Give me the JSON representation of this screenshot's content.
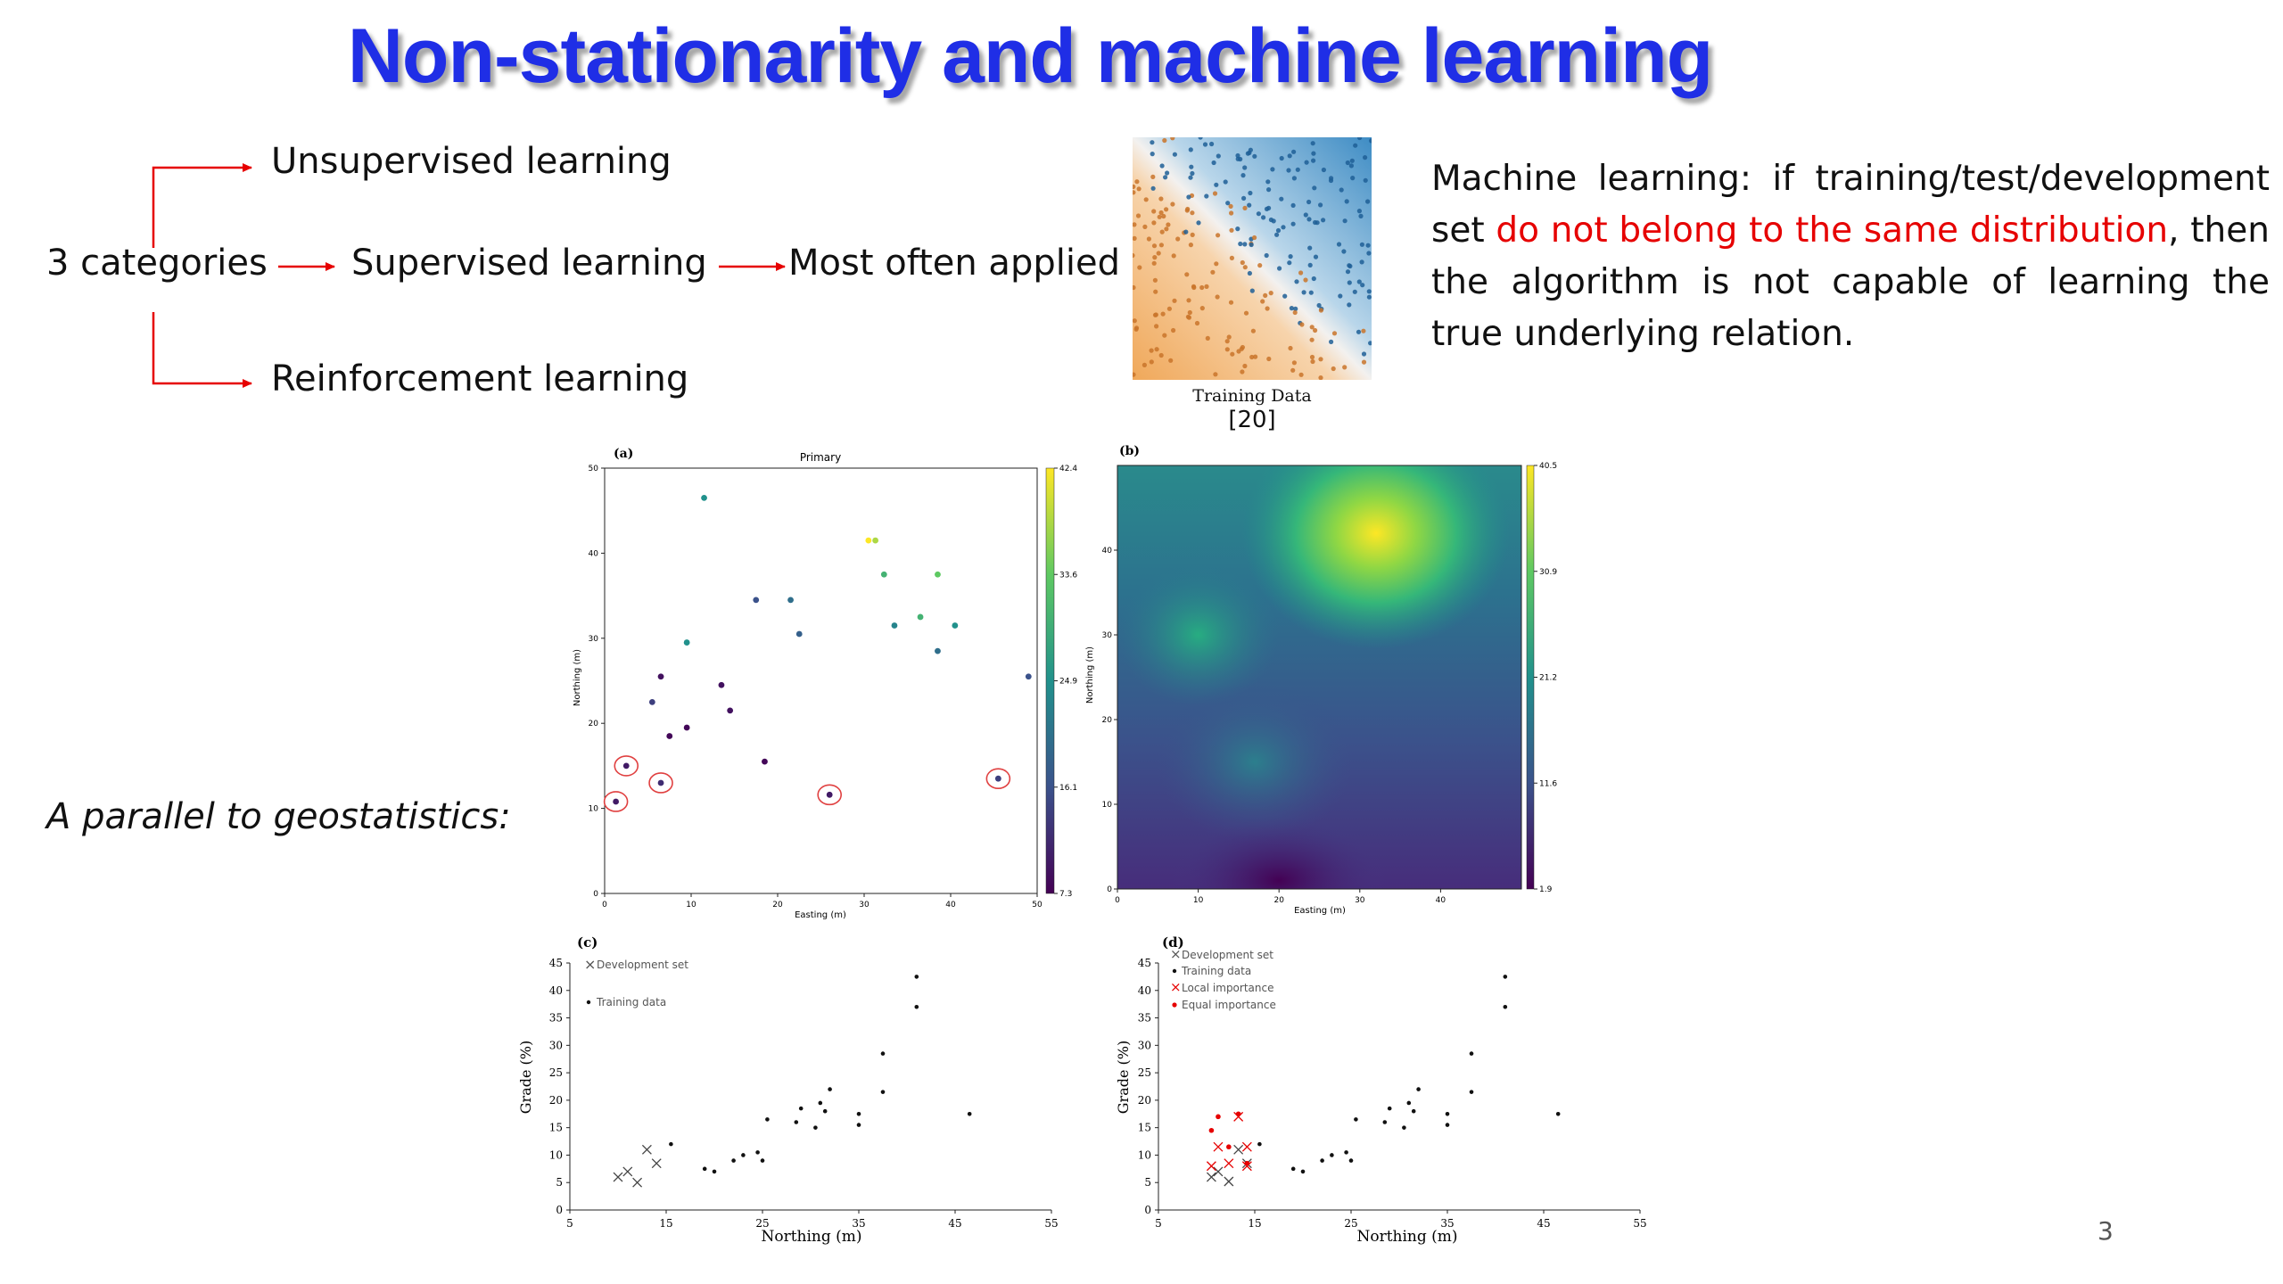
{
  "slide": {
    "title": "Non-stationarity and machine learning",
    "categories_label": "3 categories",
    "unsupervised": "Unsupervised learning",
    "supervised": "Supervised learning",
    "reinforcement": "Reinforcement learning",
    "most_often": "Most often applied",
    "paragraph": {
      "part1": "Machine learning: if training/test/development set ",
      "highlight": "do not belong to the same distribution",
      "part2": ", then the algorithm is not capable of learning the true underlying relation."
    },
    "training_caption": "Training Data",
    "reference": "[20]",
    "parallel": "A parallel to geostatistics:",
    "page_number": "3",
    "colors": {
      "title": "#1f2ee6",
      "arrow": "#e60000",
      "highlight": "#e60000"
    }
  },
  "panels": {
    "a": {
      "label": "(a)",
      "title": "Primary",
      "xlabel": "Easting (m)",
      "ylabel": "Northing (m)",
      "xticks": [
        "0",
        "10",
        "20",
        "30",
        "40",
        "50"
      ],
      "yticks": [
        "0",
        "10",
        "20",
        "30",
        "40",
        "50"
      ],
      "cbar_ticks": [
        "7.3",
        "16.1",
        "24.9",
        "33.6",
        "42.4"
      ]
    },
    "b": {
      "label": "(b)",
      "xlabel": "Easting (m)",
      "ylabel": "Northing (m)",
      "xticks": [
        "0",
        "10",
        "20",
        "30",
        "40"
      ],
      "yticks": [
        "0",
        "10",
        "20",
        "30",
        "40"
      ],
      "cbar_ticks": [
        "1.9",
        "11.6",
        "21.2",
        "30.9",
        "40.5"
      ]
    },
    "c": {
      "label": "(c)",
      "legend_dev": "Development set",
      "legend_train": "Training data"
    },
    "d": {
      "label": "(d)",
      "legend_dev": "Development set",
      "legend_train": "Training data",
      "legend_local": "Local importance",
      "legend_equal": "Equal importance"
    },
    "cd_xlabel": "Northing (m)",
    "cd_ylabel": "Grade (%)",
    "cd_xticks": [
      "5",
      "15",
      "25",
      "35",
      "45",
      "55"
    ],
    "cd_yticks": [
      "0",
      "5",
      "10",
      "15",
      "20",
      "25",
      "30",
      "35",
      "40",
      "45"
    ]
  },
  "chart_data": [
    {
      "type": "scatter",
      "name": "(a)",
      "title": "Primary",
      "xlabel": "Easting (m)",
      "ylabel": "Northing (m)",
      "xlim": [
        0,
        50
      ],
      "ylim": [
        0,
        50
      ],
      "colorbar": [
        7.3,
        42.4
      ],
      "points": [
        [
          11.5,
          46.5,
          24.9
        ],
        [
          30.5,
          41.5,
          42.4
        ],
        [
          31.3,
          41.5,
          38
        ],
        [
          32.3,
          37.5,
          30
        ],
        [
          38.5,
          37.5,
          33.6
        ],
        [
          17.5,
          34.5,
          16.1
        ],
        [
          21.5,
          34.5,
          20
        ],
        [
          33.5,
          31.5,
          23
        ],
        [
          36.5,
          32.5,
          30
        ],
        [
          40.5,
          31.5,
          24.9
        ],
        [
          9.5,
          29.5,
          24.9
        ],
        [
          22.5,
          30.5,
          18
        ],
        [
          38.5,
          28.5,
          20
        ],
        [
          6.5,
          25.5,
          9
        ],
        [
          13.5,
          24.5,
          9
        ],
        [
          49,
          25.5,
          16.1
        ],
        [
          5.5,
          22.5,
          14
        ],
        [
          14.5,
          21.5,
          9
        ],
        [
          9.5,
          19.5,
          8
        ],
        [
          7.5,
          18.5,
          8
        ],
        [
          18.5,
          15.5,
          8
        ],
        [
          2.5,
          15,
          10
        ],
        [
          6.5,
          13,
          12
        ],
        [
          45.5,
          13.5,
          14
        ],
        [
          26,
          11.6,
          10
        ],
        [
          1.3,
          10.8,
          10
        ]
      ],
      "circled": [
        [
          2.5,
          15
        ],
        [
          6.5,
          13
        ],
        [
          45.5,
          13.5
        ],
        [
          26,
          11.6
        ],
        [
          1.3,
          10.8
        ]
      ]
    },
    {
      "type": "heatmap",
      "name": "(b)",
      "xlabel": "Easting (m)",
      "ylabel": "Northing (m)",
      "xlim": [
        0,
        50
      ],
      "ylim": [
        0,
        50
      ],
      "colorbar": [
        1.9,
        40.5
      ],
      "peaks": [
        [
          32,
          42,
          40.5
        ],
        [
          10,
          30,
          22
        ],
        [
          17,
          15,
          18
        ],
        [
          20,
          1,
          2
        ]
      ]
    },
    {
      "type": "scatter",
      "name": "(c)",
      "xlabel": "Northing (m)",
      "ylabel": "Grade (%)",
      "xlim": [
        5,
        55
      ],
      "ylim": [
        0,
        45
      ],
      "series": [
        {
          "name": "Development set",
          "marker": "x",
          "points": [
            [
              10,
              6
            ],
            [
              11,
              7
            ],
            [
              12,
              5
            ],
            [
              13,
              11
            ],
            [
              14,
              8.5
            ]
          ]
        },
        {
          "name": "Training data",
          "marker": "dot",
          "points": [
            [
              15.5,
              12
            ],
            [
              19,
              7.5
            ],
            [
              20,
              7
            ],
            [
              22,
              9
            ],
            [
              23,
              10
            ],
            [
              24.5,
              10.5
            ],
            [
              25,
              9
            ],
            [
              25.5,
              16.5
            ],
            [
              28.5,
              16
            ],
            [
              29,
              18.5
            ],
            [
              30.5,
              15
            ],
            [
              31,
              19.5
            ],
            [
              31.5,
              18
            ],
            [
              32,
              22
            ],
            [
              35,
              17.5
            ],
            [
              35,
              15.5
            ],
            [
              37.5,
              28.5
            ],
            [
              37.5,
              21.5
            ],
            [
              41,
              42.5
            ],
            [
              41,
              37
            ],
            [
              46.5,
              17.5
            ]
          ]
        }
      ]
    },
    {
      "type": "scatter",
      "name": "(d)",
      "xlabel": "Northing (m)",
      "ylabel": "Grade (%)",
      "xlim": [
        5,
        55
      ],
      "ylim": [
        0,
        45
      ],
      "series": [
        {
          "name": "Development set",
          "marker": "x",
          "points": [
            [
              10.5,
              6
            ],
            [
              11.2,
              7
            ],
            [
              12.3,
              5.2
            ],
            [
              13.3,
              11
            ],
            [
              14.2,
              8.5
            ]
          ]
        },
        {
          "name": "Training data",
          "marker": "dot",
          "points": [
            [
              15.5,
              12
            ],
            [
              19,
              7.5
            ],
            [
              20,
              7
            ],
            [
              22,
              9
            ],
            [
              23,
              10
            ],
            [
              24.5,
              10.5
            ],
            [
              25,
              9
            ],
            [
              25.5,
              16.5
            ],
            [
              28.5,
              16
            ],
            [
              29,
              18.5
            ],
            [
              30.5,
              15
            ],
            [
              31,
              19.5
            ],
            [
              31.5,
              18
            ],
            [
              32,
              22
            ],
            [
              35,
              17.5
            ],
            [
              35,
              15.5
            ],
            [
              37.5,
              28.5
            ],
            [
              37.5,
              21.5
            ],
            [
              41,
              42.5
            ],
            [
              41,
              37
            ],
            [
              46.5,
              17.5
            ]
          ]
        },
        {
          "name": "Local importance",
          "marker": "x-red",
          "points": [
            [
              10.5,
              8
            ],
            [
              11.2,
              11.5
            ],
            [
              12.3,
              8.5
            ],
            [
              13.3,
              17
            ],
            [
              14.2,
              11.5
            ],
            [
              14.2,
              8
            ]
          ]
        },
        {
          "name": "Equal importance",
          "marker": "dot-red",
          "points": [
            [
              10.5,
              14.5
            ],
            [
              11.2,
              17
            ],
            [
              12.3,
              11.5
            ],
            [
              13.3,
              17.5
            ],
            [
              14.2,
              8.5
            ]
          ]
        }
      ]
    }
  ]
}
